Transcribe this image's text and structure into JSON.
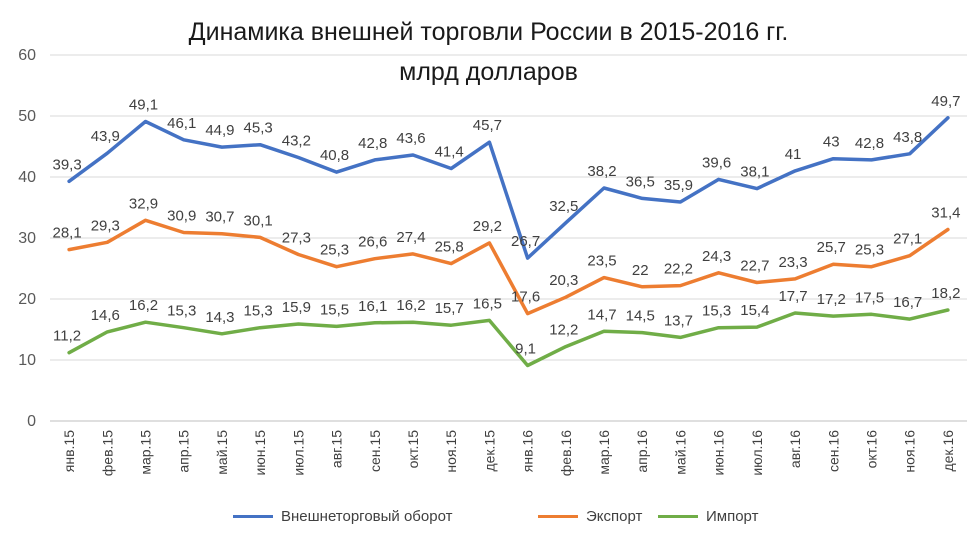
{
  "chart_data": {
    "type": "line",
    "title_line1": "Динамика внешней торговли России в 2015-2016 гг.",
    "title_line2": "млрд  долларов",
    "xlabel": "",
    "ylabel": "",
    "ylim": [
      0,
      60
    ],
    "yticks": [
      "0",
      "10",
      "20",
      "30",
      "40",
      "50",
      "60"
    ],
    "grid": true,
    "legend_position": "bottom",
    "categories": [
      "янв.15",
      "фев.15",
      "мар.15",
      "апр.15",
      "май.15",
      "июн.15",
      "июл.15",
      "авг.15",
      "сен.15",
      "окт.15",
      "ноя.15",
      "дек.15",
      "янв.16",
      "фев.16",
      "мар.16",
      "апр.16",
      "май.16",
      "июн.16",
      "июл.16",
      "авг.16",
      "сен.16",
      "окт.16",
      "ноя.16",
      "дек.16"
    ],
    "series": [
      {
        "name": "Внешнеторговый оборот",
        "color": "#4472C4",
        "values": [
          39.3,
          43.9,
          49.1,
          46.1,
          44.9,
          45.3,
          43.2,
          40.8,
          42.8,
          43.6,
          41.4,
          45.7,
          26.7,
          32.5,
          38.2,
          36.5,
          35.9,
          39.6,
          38.1,
          41,
          43,
          42.8,
          43.8,
          49.7
        ],
        "labels": [
          "39,3",
          "43,9",
          "49,1",
          "46,1",
          "44,9",
          "45,3",
          "43,2",
          "40,8",
          "42,8",
          "43,6",
          "41,4",
          "45,7",
          "26,7",
          "32,5",
          "38,2",
          "36,5",
          "35,9",
          "39,6",
          "38,1",
          "41",
          "43",
          "42,8",
          "43,8",
          "49,7"
        ]
      },
      {
        "name": "Экспорт",
        "color": "#ED7D31",
        "values": [
          28.1,
          29.3,
          32.9,
          30.9,
          30.7,
          30.1,
          27.3,
          25.3,
          26.6,
          27.4,
          25.8,
          29.2,
          17.6,
          20.3,
          23.5,
          22,
          22.2,
          24.3,
          22.7,
          23.3,
          25.7,
          25.3,
          27.1,
          31.4
        ],
        "labels": [
          "28,1",
          "29,3",
          "32,9",
          "30,9",
          "30,7",
          "30,1",
          "27,3",
          "25,3",
          "26,6",
          "27,4",
          "25,8",
          "29,2",
          "17,6",
          "20,3",
          "23,5",
          "22",
          "22,2",
          "24,3",
          "22,7",
          "23,3",
          "25,7",
          "25,3",
          "27,1",
          "31,4"
        ]
      },
      {
        "name": "Импорт",
        "color": "#70AD47",
        "values": [
          11.2,
          14.6,
          16.2,
          15.3,
          14.3,
          15.3,
          15.9,
          15.5,
          16.1,
          16.2,
          15.7,
          16.5,
          9.1,
          12.2,
          14.7,
          14.5,
          13.7,
          15.3,
          15.4,
          17.7,
          17.2,
          17.5,
          16.7,
          18.2
        ],
        "labels": [
          "11,2",
          "14,6",
          "16,2",
          "15,3",
          "14,3",
          "15,3",
          "15,9",
          "15,5",
          "16,1",
          "16,2",
          "15,7",
          "16,5",
          "9,1",
          "12,2",
          "14,7",
          "14,5",
          "13,7",
          "15,3",
          "15,4",
          "17,7",
          "17,2",
          "17,5",
          "16,7",
          "18,2"
        ]
      }
    ]
  }
}
